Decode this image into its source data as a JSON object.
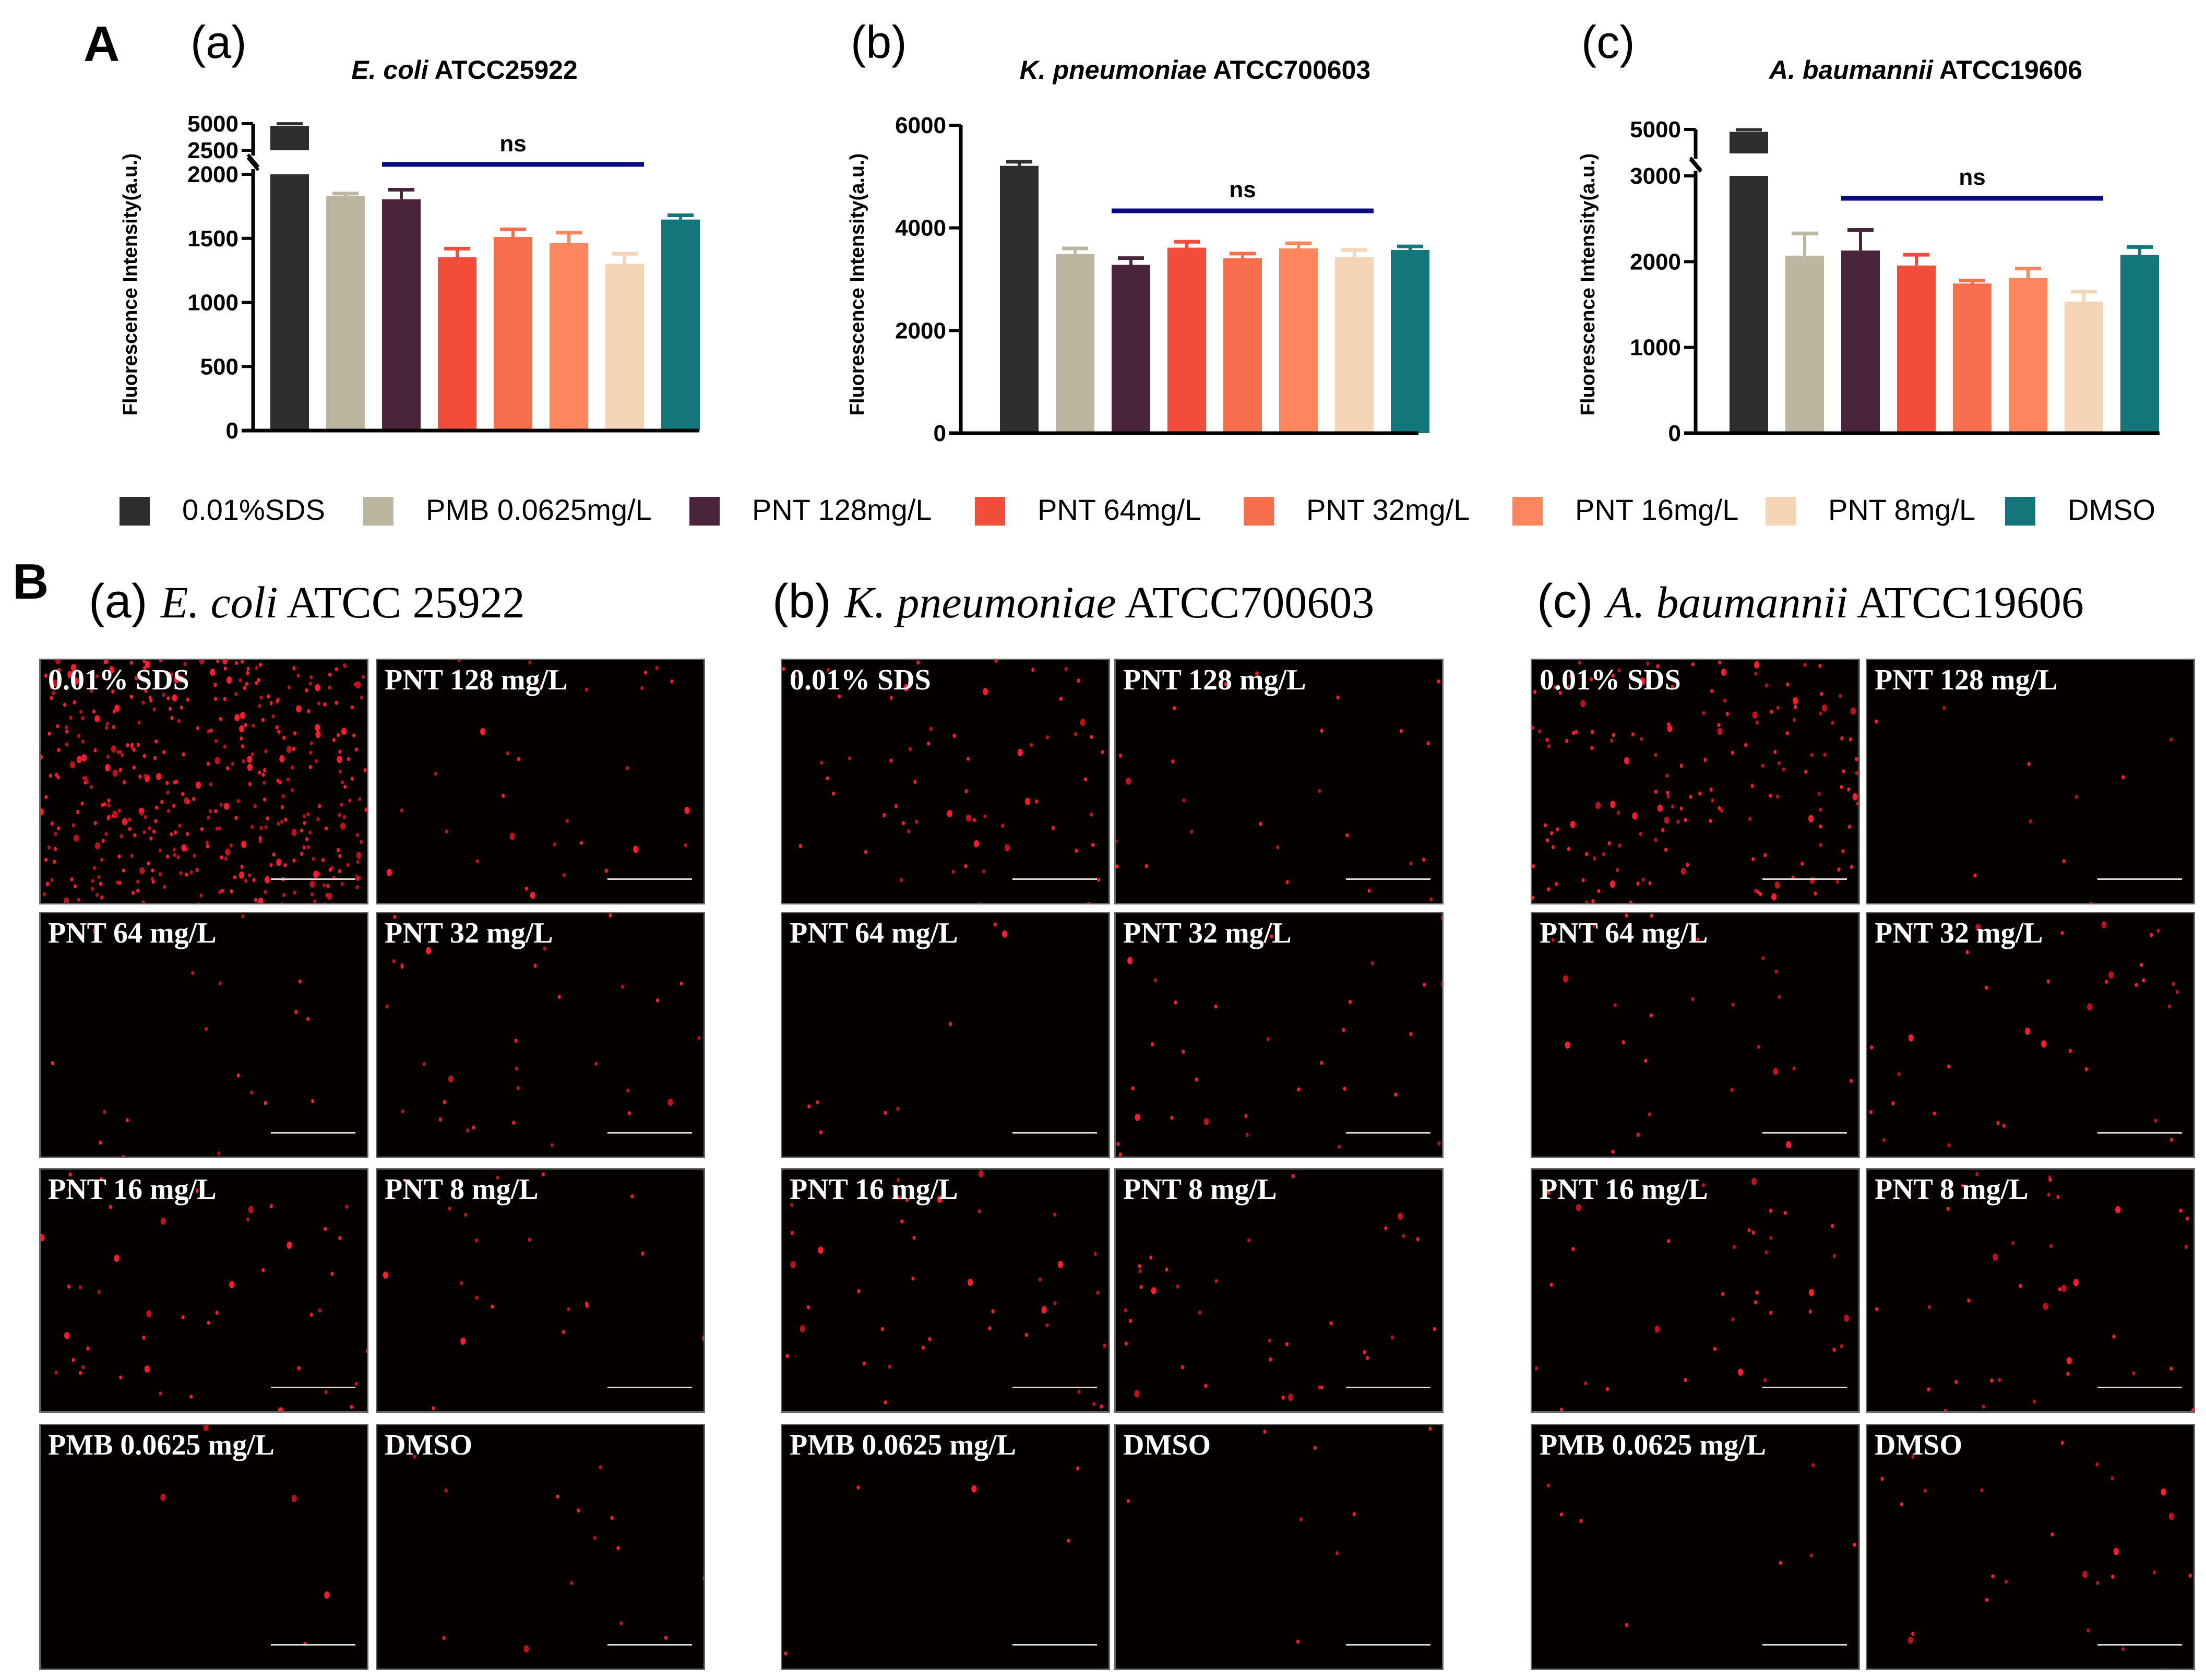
{
  "panel_A": {
    "letter": "A",
    "subpanels": [
      "(a)",
      "(b)",
      "(c)"
    ],
    "titles": [
      {
        "italic": "E. coli",
        "rest": " ATCC25922"
      },
      {
        "italic": "K. pneumoniae",
        "rest": " ATCC700603"
      },
      {
        "italic": "A. baumannii",
        "rest": " ATCC19606"
      }
    ]
  },
  "legend": [
    {
      "label": "0.01%SDS",
      "color": "#2e2e2e"
    },
    {
      "label": "PMB 0.0625mg/L",
      "color": "#bab6a0"
    },
    {
      "label": "PNT 128mg/L",
      "color": "#4a243a"
    },
    {
      "label": "PNT 64mg/L",
      "color": "#f24c3a"
    },
    {
      "label": "PNT 32mg/L",
      "color": "#f96e4c"
    },
    {
      "label": "PNT 16mg/L",
      "color": "#fe865c"
    },
    {
      "label": "PNT 8mg/L",
      "color": "#f6d5b7"
    },
    {
      "label": "DMSO",
      "color": "#12767a"
    }
  ],
  "ns_color": "#0b0b80",
  "chart_data": [
    {
      "type": "bar",
      "title": "E. coli ATCC25922",
      "ylabel": "Fluorescence Intensity(a.u.)",
      "categories": [
        "0.01%SDS",
        "PMB 0.0625mg/L",
        "PNT 128mg/L",
        "PNT 64mg/L",
        "PNT 32mg/L",
        "PNT 16mg/L",
        "PNT 8mg/L",
        "DMSO"
      ],
      "values": [
        4800,
        1830,
        1805,
        1353,
        1511,
        1463,
        1302,
        1647
      ],
      "errors": [
        60,
        20,
        75,
        67,
        59,
        82,
        78,
        33
      ],
      "y_axis_break": true,
      "ylim_segments": [
        [
          0,
          2000
        ],
        [
          2500,
          5000
        ]
      ],
      "yticks": [
        "0",
        "500",
        "1000",
        "1500",
        "2000",
        "2500",
        "5000"
      ],
      "annotation": {
        "text": "ns",
        "from_category": 2,
        "to_category": 6
      }
    },
    {
      "type": "bar",
      "title": "K. pneumoniae ATCC700603",
      "ylabel": "Fluorescence Intensity(a.u.)",
      "categories": [
        "0.01%SDS",
        "PMB 0.0625mg/L",
        "PNT 128mg/L",
        "PNT 64mg/L",
        "PNT 32mg/L",
        "PNT 16mg/L",
        "PNT 8mg/L",
        "DMSO"
      ],
      "values": [
        5210,
        3490,
        3280,
        3615,
        3410,
        3600,
        3430,
        3570
      ],
      "errors": [
        80,
        110,
        130,
        115,
        90,
        100,
        140,
        70
      ],
      "y_axis_break": false,
      "ylim": [
        0,
        6000
      ],
      "yticks": [
        "0",
        "2000",
        "4000",
        "6000"
      ],
      "annotation": {
        "text": "ns",
        "from_category": 2,
        "to_category": 6
      }
    },
    {
      "type": "bar",
      "title": "A. baumannii ATCC19606",
      "ylabel": "Fluorescence Intensity(a.u.)",
      "categories": [
        "0.01%SDS",
        "PMB 0.0625mg/L",
        "PNT 128mg/L",
        "PNT 64mg/L",
        "PNT 32mg/L",
        "PNT 16mg/L",
        "PNT 8mg/L",
        "DMSO"
      ],
      "values": [
        4950,
        2070,
        2130,
        1955,
        1745,
        1810,
        1535,
        2080
      ],
      "errors": [
        40,
        260,
        240,
        125,
        35,
        110,
        115,
        90
      ],
      "y_axis_break": true,
      "ylim_segments": [
        [
          0,
          3000
        ],
        [
          4500,
          5000
        ]
      ],
      "yticks": [
        "0",
        "1000",
        "2000",
        "3000",
        "5000"
      ],
      "annotation": {
        "text": "ns",
        "from_category": 2,
        "to_category": 6
      }
    }
  ],
  "panel_B": {
    "letter": "B",
    "columns": [
      {
        "paren": "(a)",
        "italic": "E. coli",
        "rest": " ATCC 25922",
        "panels": [
          "0.01% SDS",
          "PNT 128 mg/L",
          "PNT 64 mg/L",
          "PNT 32 mg/L",
          "PNT 16 mg/L",
          "PNT 8 mg/L",
          "PMB 0.0625 mg/L",
          "DMSO"
        ]
      },
      {
        "paren": "(b)",
        "italic": "K. pneumoniae",
        "rest": " ATCC700603",
        "panels": [
          "0.01% SDS",
          "PNT 128 mg/L",
          "PNT 64 mg/L",
          "PNT 32 mg/L",
          "PNT 16 mg/L",
          "PNT 8 mg/L",
          "PMB 0.0625 mg/L",
          "DMSO"
        ]
      },
      {
        "paren": "(c)",
        "italic": "A. baumannii",
        "rest": " ATCC19606",
        "panels": [
          "0.01% SDS",
          "PNT 128 mg/L",
          "PNT 64 mg/L",
          "PNT 32 mg/L",
          "PNT 16 mg/L",
          "PNT 8 mg/L",
          "PMB 0.0625 mg/L",
          "DMSO"
        ]
      }
    ]
  }
}
